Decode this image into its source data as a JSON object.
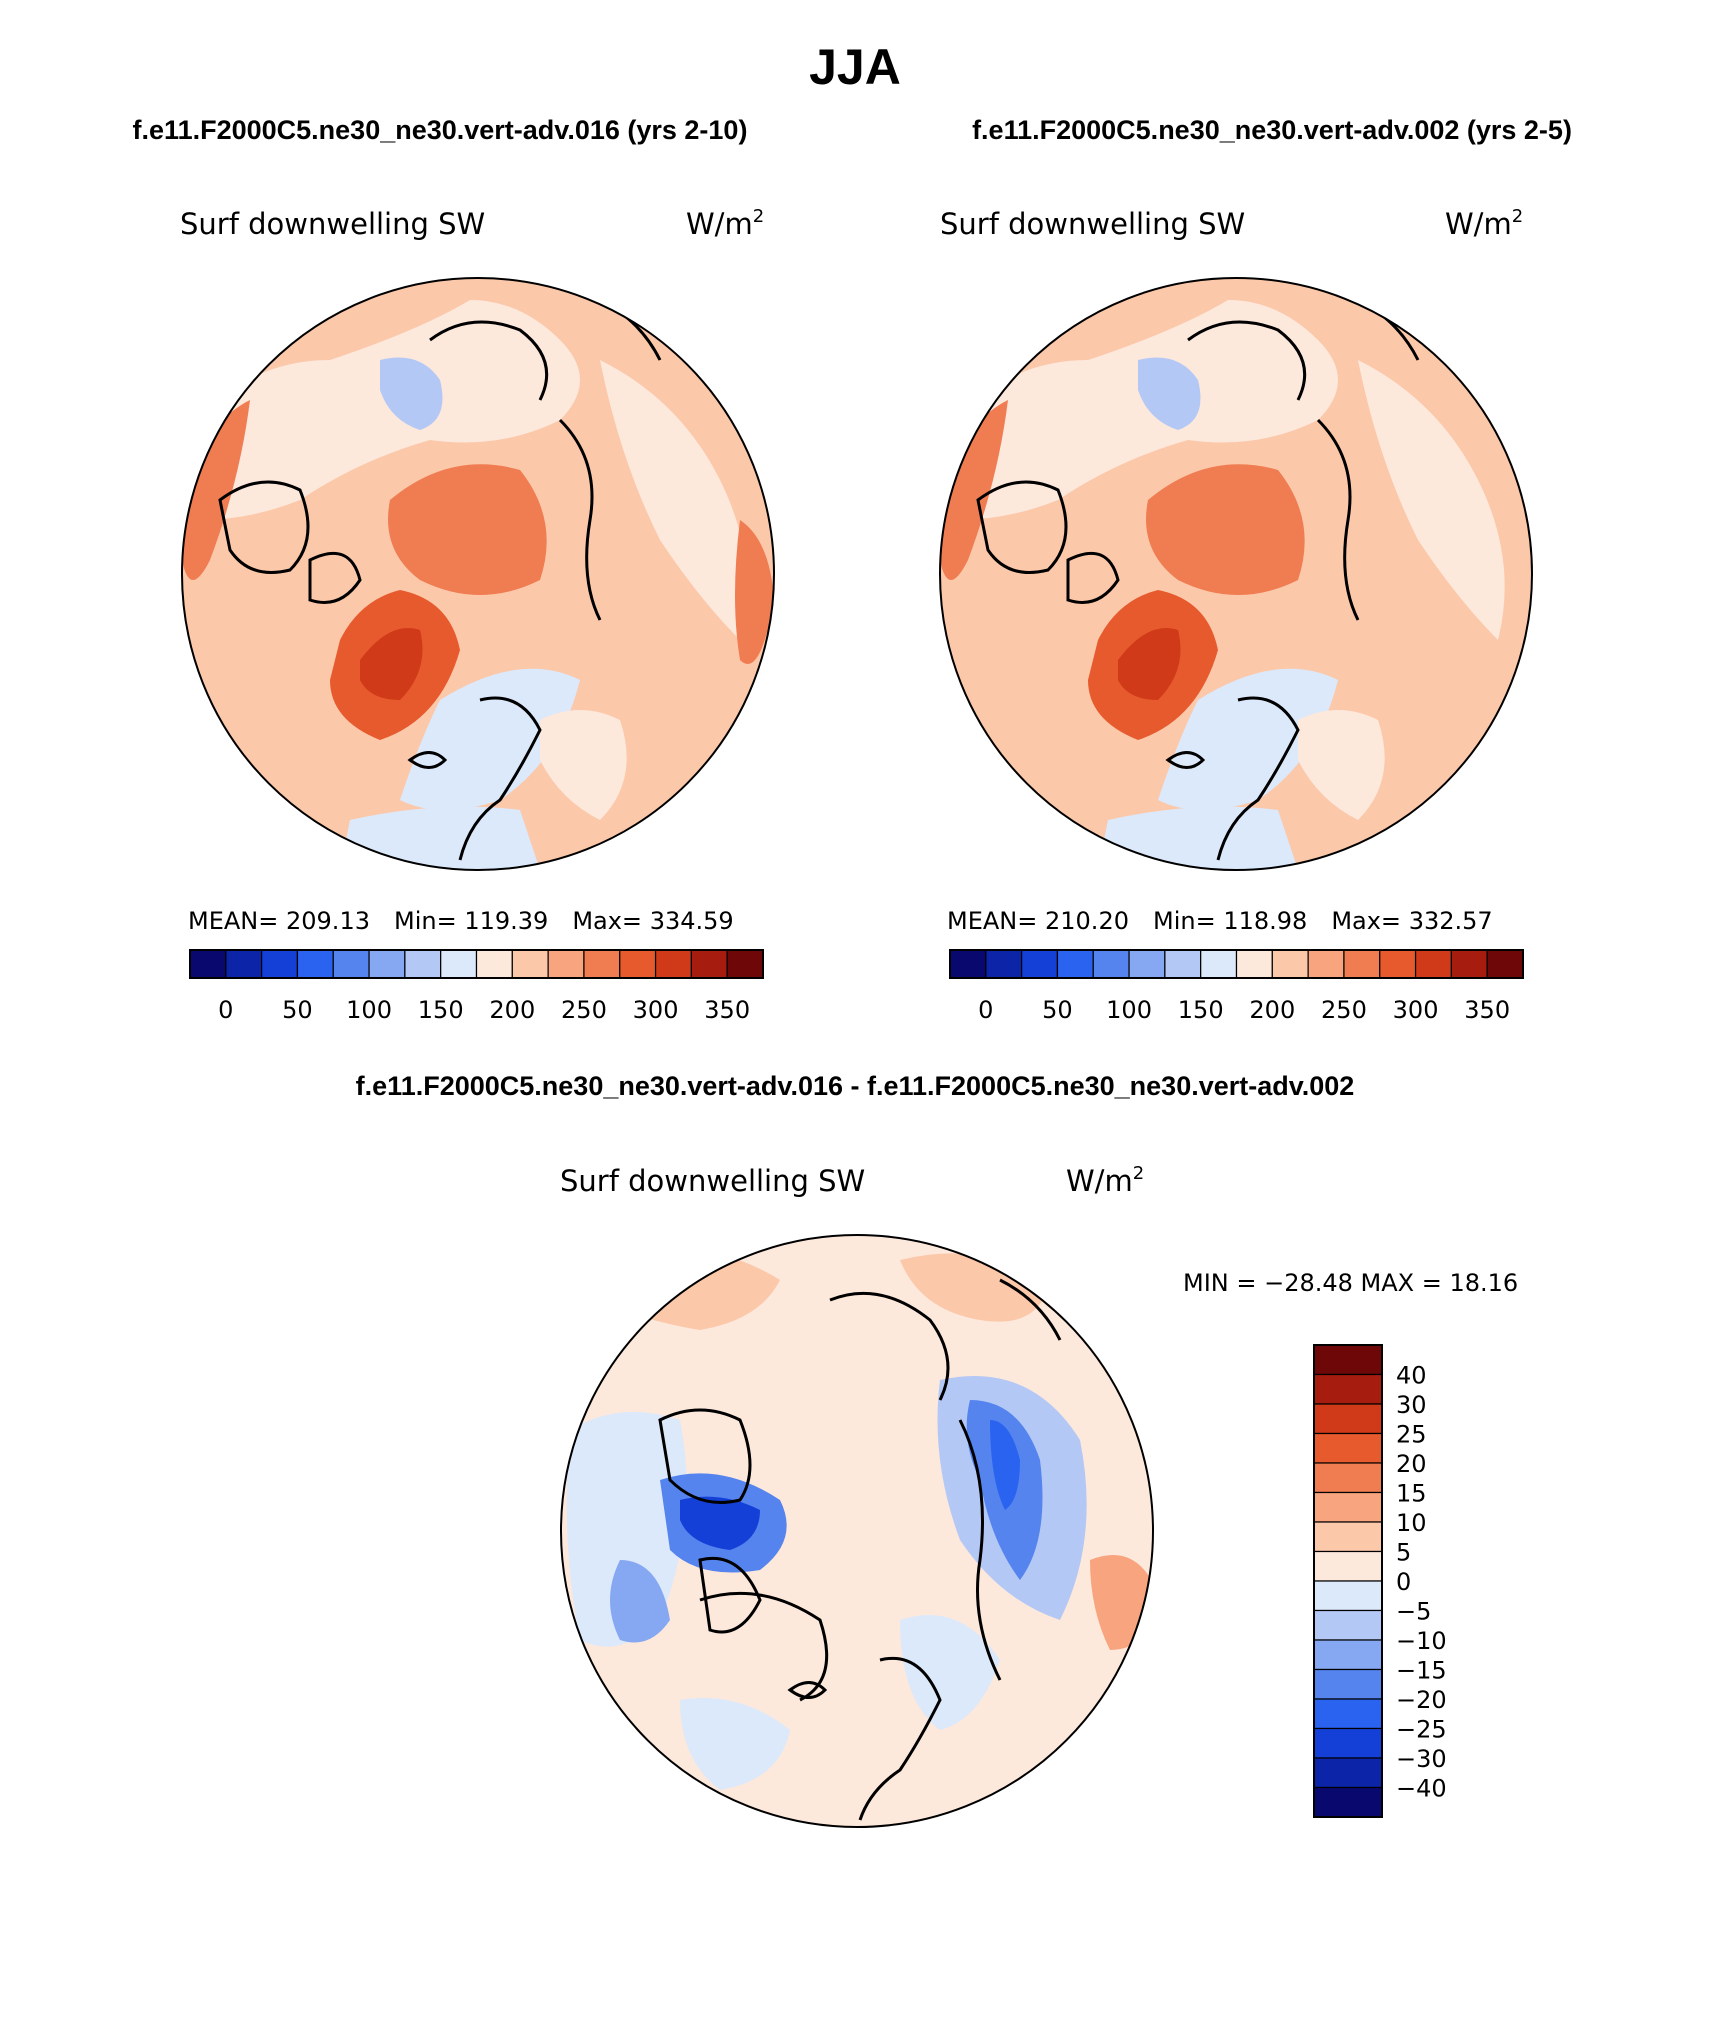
{
  "page_title": "JJA",
  "panels": [
    {
      "case_title": "f.e11.F2000C5.ne30_ne30.vert-adv.016 (yrs 2-10)",
      "variable": "Surf downwelling SW",
      "units_base": "W/m",
      "units_exp": "2",
      "stats": {
        "mean_label": "MEAN=",
        "mean": "209.13",
        "min_label": "Min=",
        "min": "119.39",
        "max_label": "Max=",
        "max": "334.59"
      }
    },
    {
      "case_title": "f.e11.F2000C5.ne30_ne30.vert-adv.002 (yrs 2-5)",
      "variable": "Surf downwelling SW",
      "units_base": "W/m",
      "units_exp": "2",
      "stats": {
        "mean_label": "MEAN=",
        "mean": "210.20",
        "min_label": "Min=",
        "min": "118.98",
        "max_label": "Max=",
        "max": "332.57"
      }
    }
  ],
  "diff_panel": {
    "case_title": "f.e11.F2000C5.ne30_ne30.vert-adv.016 - f.e11.F2000C5.ne30_ne30.vert-adv.002",
    "variable": "Surf downwelling SW",
    "units_base": "W/m",
    "units_exp": "2",
    "minmax_text": "MIN = −28.48 MAX =  18.16"
  },
  "colorbar_abs": {
    "colors": [
      "#08086e",
      "#0b24a8",
      "#1440d8",
      "#2a63f0",
      "#5584ee",
      "#86a8f2",
      "#b4c8f6",
      "#dce9fb",
      "#fde8dc",
      "#fcc8aa",
      "#f8a47e",
      "#f07c52",
      "#e65a2e",
      "#d03a18",
      "#a61c0e",
      "#6e0708"
    ],
    "tick_labels": [
      "0",
      "50",
      "100",
      "150",
      "200",
      "250",
      "300",
      "350"
    ]
  },
  "colorbar_diff": {
    "colors": [
      "#6e0708",
      "#a61c0e",
      "#d03a18",
      "#e65a2e",
      "#f07c52",
      "#f8a47e",
      "#fcc8aa",
      "#fde8dc",
      "#dce9fb",
      "#b4c8f6",
      "#86a8f2",
      "#5584ee",
      "#2a63f0",
      "#1440d8",
      "#0b24a8",
      "#08086e"
    ],
    "tick_labels": [
      "40",
      "30",
      "25",
      "20",
      "15",
      "10",
      "5",
      "0",
      "−5",
      "−10",
      "−15",
      "−20",
      "−25",
      "−30",
      "−40"
    ]
  },
  "map_colors": {
    "warm1": "#fde8dc",
    "warm2": "#fcc8aa",
    "warm3": "#f8a47e",
    "warm4": "#f07c52",
    "warm5": "#e65a2e",
    "warm6": "#d03a18",
    "warm7": "#a61c0e",
    "cool1": "#dce9fb",
    "cool2": "#b4c8f6",
    "cool3": "#86a8f2",
    "cool4": "#5584ee",
    "cool5": "#2a63f0"
  }
}
